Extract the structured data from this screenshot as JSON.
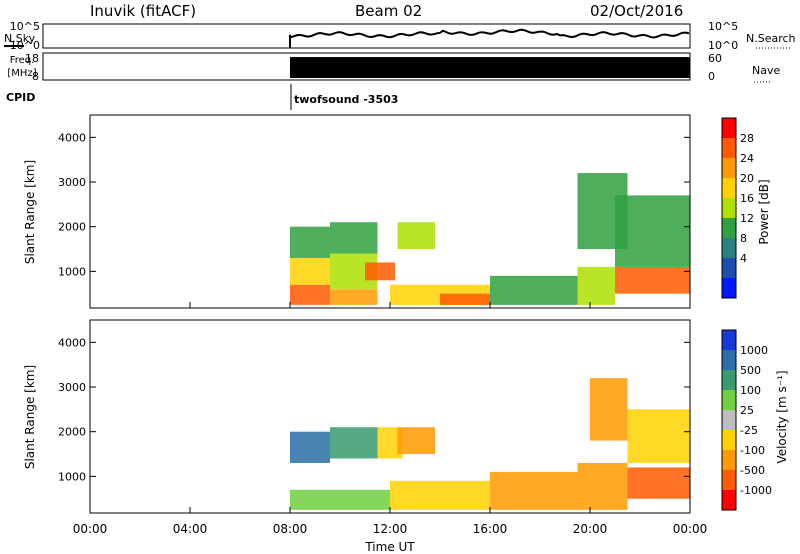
{
  "header": {
    "station": "Inuvik (fitACF)",
    "beam": "Beam 02",
    "date": "02/Oct/2016"
  },
  "noise_panel": {
    "left_label": "N.Sky",
    "right_label": "N.Search",
    "ticks": [
      "10^5",
      "10^0"
    ],
    "right_ticks": [
      "10^5",
      "10^0"
    ]
  },
  "freq_panel": {
    "left_label_1": "Freq.",
    "left_label_2": "[MHz]",
    "left_ticks": [
      "18",
      "8"
    ],
    "right_label": "Nave",
    "right_ticks": [
      "60",
      "0"
    ]
  },
  "cpid": {
    "label": "CPID",
    "value": "twofsound -3503"
  },
  "power_panel": {
    "ylabel": "Slant Range [km]",
    "yticks": [
      "4000",
      "3000",
      "2000",
      "1000"
    ],
    "colorbar_label": "Power [dB]",
    "colorbar_ticks": [
      "28",
      "24",
      "20",
      "16",
      "12",
      "8",
      "4"
    ],
    "colorbar_colors": [
      "#ff0000",
      "#ff5a00",
      "#ff9a00",
      "#ffd200",
      "#aee000",
      "#2fa040",
      "#2a7f7f",
      "#1e4fb0",
      "#0018ff"
    ]
  },
  "velocity_panel": {
    "ylabel": "Slant Range [km]",
    "yticks": [
      "4000",
      "3000",
      "2000",
      "1000"
    ],
    "colorbar_label": "Velocity [m s⁻¹]",
    "colorbar_ticks": [
      "1000",
      "500",
      "100",
      "25",
      "-25",
      "-100",
      "-500",
      "-1000"
    ],
    "colorbar_colors": [
      "#1838d8",
      "#2a6fa8",
      "#3a9a70",
      "#6fcf40",
      "#bdbdbd",
      "#ffd200",
      "#ff9a00",
      "#ff5a00",
      "#ff0000"
    ]
  },
  "xaxis": {
    "label": "Time UT",
    "ticks": [
      "00:00",
      "04:00",
      "08:00",
      "12:00",
      "16:00",
      "20:00",
      "00:00"
    ]
  },
  "chart_data": {
    "type": "heatmap",
    "title": "Inuvik (fitACF) Beam 02 02/Oct/2016",
    "xlabel": "Time UT",
    "ylabel": "Slant Range [km]",
    "xlim": [
      "00:00",
      "24:00"
    ],
    "ylim": [
      180,
      4500
    ],
    "data_start": "08:00",
    "power_range_db": [
      0,
      30
    ],
    "velocity_range_ms": [
      -1000,
      1000
    ],
    "power_blocks": [
      {
        "t": [
          8.0,
          9.6
        ],
        "r": [
          250,
          700
        ],
        "v": 28
      },
      {
        "t": [
          8.0,
          9.6
        ],
        "r": [
          700,
          1300
        ],
        "v": 20
      },
      {
        "t": [
          8.0,
          9.6
        ],
        "r": [
          1300,
          2000
        ],
        "v": 12
      },
      {
        "t": [
          9.6,
          11.5
        ],
        "r": [
          250,
          600
        ],
        "v": 22
      },
      {
        "t": [
          9.6,
          11.5
        ],
        "r": [
          600,
          1400
        ],
        "v": 14
      },
      {
        "t": [
          9.6,
          11.5
        ],
        "r": [
          1400,
          2100
        ],
        "v": 10
      },
      {
        "t": [
          11.0,
          12.2
        ],
        "r": [
          800,
          1200
        ],
        "v": 26
      },
      {
        "t": [
          12.3,
          13.8
        ],
        "r": [
          1500,
          2100
        ],
        "v": 14
      },
      {
        "t": [
          12.0,
          16.0
        ],
        "r": [
          250,
          700
        ],
        "v": 18
      },
      {
        "t": [
          14.0,
          16.0
        ],
        "r": [
          250,
          500
        ],
        "v": 26
      },
      {
        "t": [
          16.0,
          19.5
        ],
        "r": [
          250,
          900
        ],
        "v": 12
      },
      {
        "t": [
          19.5,
          21.0
        ],
        "r": [
          250,
          1100
        ],
        "v": 16
      },
      {
        "t": [
          19.5,
          21.5
        ],
        "r": [
          1500,
          3200
        ],
        "v": 12
      },
      {
        "t": [
          21.0,
          24.0
        ],
        "r": [
          500,
          1100
        ],
        "v": 26
      },
      {
        "t": [
          21.0,
          24.0
        ],
        "r": [
          1100,
          2700
        ],
        "v": 10
      }
    ],
    "velocity_blocks": [
      {
        "t": [
          8.0,
          9.6
        ],
        "r": [
          250,
          700
        ],
        "v": 25
      },
      {
        "t": [
          8.0,
          9.6
        ],
        "r": [
          1300,
          2000
        ],
        "v": 500
      },
      {
        "t": [
          9.6,
          11.5
        ],
        "r": [
          1400,
          2100
        ],
        "v": 400
      },
      {
        "t": [
          11.5,
          12.5
        ],
        "r": [
          1400,
          2100
        ],
        "v": -100
      },
      {
        "t": [
          12.3,
          13.8
        ],
        "r": [
          1500,
          2100
        ],
        "v": -200
      },
      {
        "t": [
          9.6,
          12.0
        ],
        "r": [
          250,
          700
        ],
        "v": 50
      },
      {
        "t": [
          12.0,
          16.0
        ],
        "r": [
          250,
          900
        ],
        "v": -100
      },
      {
        "t": [
          16.0,
          19.5
        ],
        "r": [
          250,
          1100
        ],
        "v": -300
      },
      {
        "t": [
          19.5,
          21.5
        ],
        "r": [
          250,
          1300
        ],
        "v": -400
      },
      {
        "t": [
          20.0,
          21.5
        ],
        "r": [
          1800,
          3200
        ],
        "v": -300
      },
      {
        "t": [
          21.5,
          24.0
        ],
        "r": [
          500,
          1200
        ],
        "v": -600
      },
      {
        "t": [
          21.5,
          24.0
        ],
        "r": [
          1300,
          2500
        ],
        "v": -100
      }
    ],
    "noise_series": {
      "t_start": 8.0,
      "level": 0.55
    },
    "nave_series": {
      "t_start": 8.0,
      "level": 0.85
    }
  }
}
